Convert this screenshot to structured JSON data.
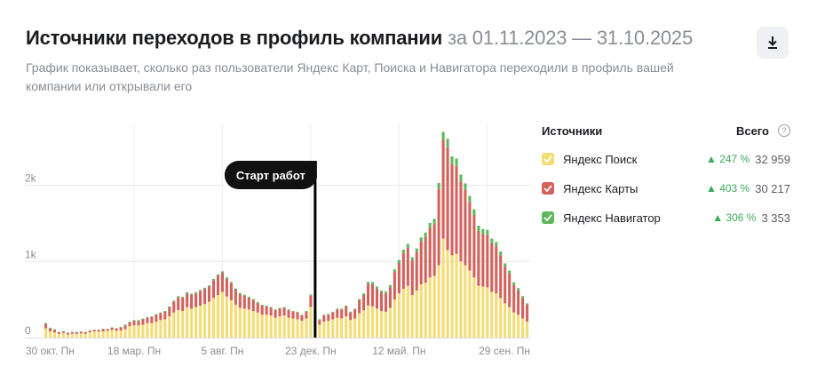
{
  "header": {
    "title": "Источники переходов в профиль компании",
    "period": "за 01.11.2023 — 31.10.2025",
    "subtitle": "График показывает, сколько раз пользователи Яндекс Карт, Поиска и Навигатора переходили в профиль вашей компании или открывали его"
  },
  "download": {
    "icon": "download-icon"
  },
  "legend": {
    "sources_label": "Источники",
    "total_label": "Всего",
    "help_icon": "?",
    "items": [
      {
        "name": "Яндекс Поиск",
        "change": "▲ 247 %",
        "count": "32 959",
        "color": "#f4dc75"
      },
      {
        "name": "Яндекс Карты",
        "change": "▲ 403 %",
        "count": "30 217",
        "color": "#d4625c"
      },
      {
        "name": "Яндекс Навигатор",
        "change": "▲ 306 %",
        "count": "3 353",
        "color": "#5cb85c"
      }
    ]
  },
  "chart_data": {
    "type": "bar",
    "stacked": true,
    "y_tick_labels": [
      "0",
      "1k",
      "2k"
    ],
    "y_ticks": [
      0,
      1000,
      2000
    ],
    "ylim": [
      0,
      2800
    ],
    "x_tick_labels": [
      "30 окт. Пн",
      "18 мар. Пн",
      "5 авг. Пн",
      "23 дек. Пн",
      "12 май. Пн",
      "29 сен. Пн"
    ],
    "x_tick_index": [
      0,
      20,
      40,
      60,
      80,
      100
    ],
    "annotation": {
      "text": "Старт работ",
      "bar_index": 61
    },
    "grid": true,
    "series": [
      {
        "name": "Яндекс Поиск",
        "color": "#f4dc75",
        "values": [
          120,
          80,
          70,
          50,
          60,
          40,
          50,
          50,
          55,
          50,
          70,
          80,
          80,
          80,
          90,
          100,
          90,
          90,
          110,
          150,
          160,
          160,
          170,
          190,
          190,
          210,
          230,
          240,
          280,
          330,
          360,
          350,
          400,
          380,
          400,
          420,
          440,
          470,
          520,
          560,
          600,
          540,
          490,
          430,
          390,
          380,
          370,
          350,
          330,
          300,
          300,
          290,
          260,
          280,
          290,
          260,
          250,
          240,
          220,
          250,
          400,
          250,
          170,
          210,
          220,
          240,
          260,
          250,
          280,
          230,
          250,
          320,
          360,
          420,
          410,
          380,
          350,
          340,
          390,
          500,
          580,
          640,
          680,
          560,
          620,
          700,
          720,
          790,
          810,
          950,
          1300,
          1150,
          1080,
          1100,
          1000,
          950,
          880,
          790,
          680,
          670,
          660,
          600,
          580,
          520,
          450,
          400,
          330,
          300,
          250,
          210
        ]
      },
      {
        "name": "Яндекс Карты",
        "color": "#d4625c",
        "values": [
          60,
          40,
          30,
          20,
          20,
          20,
          20,
          20,
          20,
          20,
          20,
          20,
          20,
          30,
          20,
          30,
          30,
          40,
          50,
          50,
          60,
          60,
          70,
          70,
          80,
          90,
          90,
          100,
          120,
          140,
          170,
          170,
          180,
          180,
          180,
          190,
          200,
          200,
          230,
          250,
          250,
          230,
          220,
          200,
          180,
          170,
          150,
          140,
          120,
          120,
          110,
          100,
          100,
          100,
          100,
          100,
          90,
          90,
          70,
          90,
          150,
          100,
          60,
          80,
          80,
          90,
          110,
          120,
          130,
          100,
          120,
          170,
          200,
          280,
          290,
          260,
          240,
          240,
          270,
          360,
          400,
          470,
          500,
          450,
          500,
          560,
          600,
          650,
          680,
          1000,
          1300,
          1350,
          1200,
          1150,
          1050,
          990,
          900,
          820,
          720,
          690,
          690,
          640,
          620,
          560,
          480,
          440,
          360,
          320,
          270,
          220
        ]
      },
      {
        "name": "Яндекс Навигатор",
        "color": "#5cb85c",
        "values": [
          10,
          10,
          10,
          5,
          5,
          5,
          5,
          5,
          5,
          5,
          5,
          5,
          5,
          5,
          5,
          5,
          5,
          10,
          10,
          10,
          10,
          10,
          10,
          10,
          10,
          10,
          10,
          10,
          10,
          15,
          15,
          15,
          15,
          15,
          15,
          15,
          15,
          15,
          20,
          20,
          20,
          20,
          20,
          15,
          15,
          15,
          15,
          15,
          15,
          10,
          10,
          10,
          10,
          10,
          10,
          10,
          10,
          10,
          10,
          10,
          15,
          10,
          10,
          10,
          10,
          10,
          10,
          10,
          10,
          10,
          10,
          15,
          20,
          30,
          30,
          30,
          25,
          25,
          30,
          35,
          40,
          45,
          50,
          45,
          50,
          55,
          60,
          65,
          70,
          80,
          100,
          110,
          100,
          100,
          90,
          85,
          80,
          75,
          70,
          65,
          65,
          60,
          55,
          50,
          45,
          40,
          35,
          30,
          25,
          20
        ]
      }
    ]
  }
}
